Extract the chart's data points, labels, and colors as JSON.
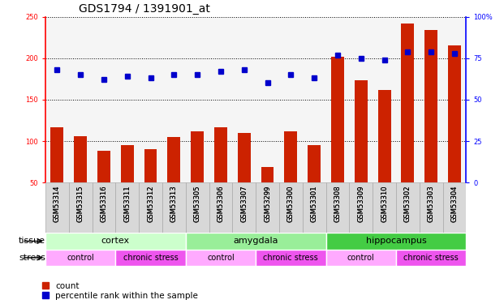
{
  "title": "GDS1794 / 1391901_at",
  "samples": [
    "GSM53314",
    "GSM53315",
    "GSM53316",
    "GSM53311",
    "GSM53312",
    "GSM53313",
    "GSM53305",
    "GSM53306",
    "GSM53307",
    "GSM53299",
    "GSM53300",
    "GSM53301",
    "GSM53308",
    "GSM53309",
    "GSM53310",
    "GSM53302",
    "GSM53303",
    "GSM53304"
  ],
  "counts": [
    117,
    106,
    88,
    95,
    90,
    105,
    112,
    117,
    110,
    69,
    112,
    95,
    202,
    173,
    162,
    242,
    234,
    215
  ],
  "percentiles": [
    68,
    65,
    62,
    64,
    63,
    65,
    65,
    67,
    68,
    60,
    65,
    63,
    77,
    75,
    74,
    79,
    79,
    78
  ],
  "ylim_left": [
    50,
    250
  ],
  "ylim_right": [
    0,
    100
  ],
  "yticks_left": [
    50,
    100,
    150,
    200,
    250
  ],
  "yticks_right": [
    0,
    25,
    50,
    75,
    100
  ],
  "bar_color": "#cc2200",
  "dot_color": "#0000cc",
  "tissue_groups": [
    {
      "label": "cortex",
      "start": 0,
      "end": 6,
      "color": "#ccffcc"
    },
    {
      "label": "amygdala",
      "start": 6,
      "end": 12,
      "color": "#99ee99"
    },
    {
      "label": "hippocampus",
      "start": 12,
      "end": 18,
      "color": "#44cc44"
    }
  ],
  "stress_groups": [
    {
      "label": "control",
      "start": 0,
      "end": 3,
      "color": "#ffaaff"
    },
    {
      "label": "chronic stress",
      "start": 3,
      "end": 6,
      "color": "#ee55ee"
    },
    {
      "label": "control",
      "start": 6,
      "end": 9,
      "color": "#ffaaff"
    },
    {
      "label": "chronic stress",
      "start": 9,
      "end": 12,
      "color": "#ee55ee"
    },
    {
      "label": "control",
      "start": 12,
      "end": 15,
      "color": "#ffaaff"
    },
    {
      "label": "chronic stress",
      "start": 15,
      "end": 18,
      "color": "#ee55ee"
    }
  ],
  "count_legend": "count",
  "pct_legend": "percentile rank within the sample",
  "background_color": "#ffffff",
  "plot_bg_color": "#f5f5f5",
  "xticklabel_bg": "#d8d8d8",
  "title_fontsize": 10,
  "tick_fontsize": 6,
  "annot_fontsize": 8,
  "legend_fontsize": 7.5
}
